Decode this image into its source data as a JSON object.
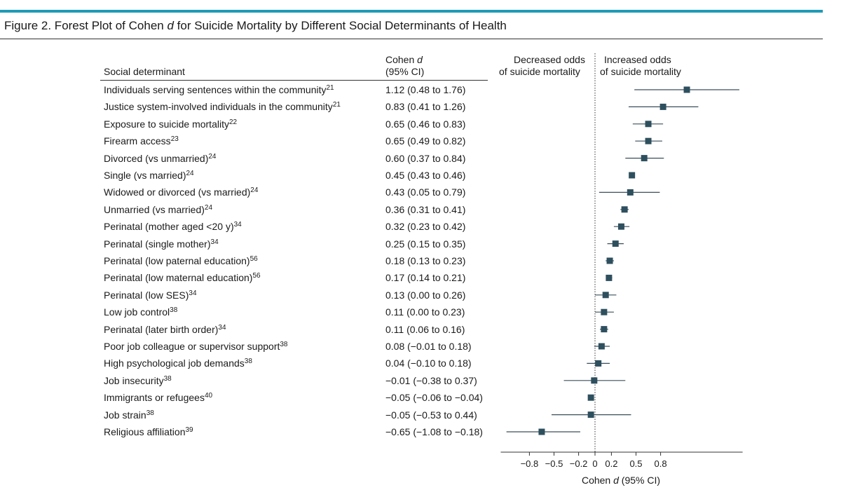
{
  "figure": {
    "title_prefix": "Figure 2. Forest Plot of Cohen ",
    "title_italic": "d",
    "title_suffix": " for Suicide Mortality by Different Social Determinants of Health"
  },
  "headers": {
    "determinant": "Social determinant",
    "ci_line1_prefix": "Cohen ",
    "ci_line1_italic": "d",
    "ci_line2": "(95% CI)",
    "decreased_line1": "Decreased odds",
    "decreased_line2": "of suicide mortality",
    "increased_line1": "Increased odds",
    "increased_line2": "of suicide mortality"
  },
  "colors": {
    "marker": "#2e4f5e",
    "accent": "#1f9bb5",
    "line": "#333333"
  },
  "chart_data": {
    "type": "forest",
    "xlabel_prefix": "Cohen ",
    "xlabel_italic": "d",
    "xlabel_suffix": " (95% CI)",
    "xlim": [
      -1.15,
      1.8
    ],
    "xticks": [
      -0.8,
      -0.5,
      -0.2,
      0,
      0.2,
      0.5,
      0.8
    ],
    "xtick_labels": [
      "−0.8",
      "−0.5",
      "−0.2",
      "0",
      "0.2",
      "0.5",
      "0.8"
    ],
    "reference_line": 0,
    "rows": [
      {
        "label": "Individuals serving sentences within the community",
        "ref": "21",
        "ci_text": "1.12 (0.48 to 1.76)",
        "d": 1.12,
        "lo": 0.48,
        "hi": 1.76
      },
      {
        "label": "Justice system-involved individuals in the community",
        "ref": "21",
        "ci_text": "0.83 (0.41 to 1.26)",
        "d": 0.83,
        "lo": 0.41,
        "hi": 1.26
      },
      {
        "label": "Exposure to suicide mortality",
        "ref": "22",
        "ci_text": "0.65 (0.46 to 0.83)",
        "d": 0.65,
        "lo": 0.46,
        "hi": 0.83
      },
      {
        "label": "Firearm access",
        "ref": "23",
        "ci_text": "0.65 (0.49 to 0.82)",
        "d": 0.65,
        "lo": 0.49,
        "hi": 0.82
      },
      {
        "label": "Divorced (vs unmarried)",
        "ref": "24",
        "ci_text": "0.60 (0.37 to 0.84)",
        "d": 0.6,
        "lo": 0.37,
        "hi": 0.84
      },
      {
        "label": "Single (vs married)",
        "ref": "24",
        "ci_text": "0.45 (0.43 to 0.46)",
        "d": 0.45,
        "lo": 0.43,
        "hi": 0.46
      },
      {
        "label": "Widowed or divorced (vs married)",
        "ref": "24",
        "ci_text": "0.43 (0.05 to 0.79)",
        "d": 0.43,
        "lo": 0.05,
        "hi": 0.79
      },
      {
        "label": "Unmarried (vs married)",
        "ref": "24",
        "ci_text": "0.36 (0.31 to 0.41)",
        "d": 0.36,
        "lo": 0.31,
        "hi": 0.41
      },
      {
        "label": "Perinatal (mother aged <20 y)",
        "ref": "34",
        "ci_text": "0.32 (0.23 to 0.42)",
        "d": 0.32,
        "lo": 0.23,
        "hi": 0.42
      },
      {
        "label": "Perinatal (single mother)",
        "ref": "34",
        "ci_text": "0.25 (0.15 to 0.35)",
        "d": 0.25,
        "lo": 0.15,
        "hi": 0.35
      },
      {
        "label": "Perinatal (low paternal education)",
        "ref": "56",
        "ci_text": "0.18 (0.13 to 0.23)",
        "d": 0.18,
        "lo": 0.13,
        "hi": 0.23
      },
      {
        "label": "Perinatal (low maternal education)",
        "ref": "56",
        "ci_text": "0.17 (0.14 to 0.21)",
        "d": 0.17,
        "lo": 0.14,
        "hi": 0.21
      },
      {
        "label": "Perinatal (low SES)",
        "ref": "34",
        "ci_text": "0.13 (0.00 to 0.26)",
        "d": 0.13,
        "lo": 0.0,
        "hi": 0.26
      },
      {
        "label": "Low job control",
        "ref": "38",
        "ci_text": "0.11 (0.00 to 0.23)",
        "d": 0.11,
        "lo": 0.0,
        "hi": 0.23
      },
      {
        "label": "Perinatal (later birth order)",
        "ref": "34",
        "ci_text": "0.11 (0.06 to 0.16)",
        "d": 0.11,
        "lo": 0.06,
        "hi": 0.16
      },
      {
        "label": "Poor job colleague or supervisor support",
        "ref": "38",
        "ci_text": "0.08 (−0.01 to 0.18)",
        "d": 0.08,
        "lo": -0.01,
        "hi": 0.18
      },
      {
        "label": "High psychological job demands",
        "ref": "38",
        "ci_text": "0.04 (−0.10 to 0.18)",
        "d": 0.04,
        "lo": -0.1,
        "hi": 0.18
      },
      {
        "label": "Job insecurity",
        "ref": "38",
        "ci_text": "−0.01 (−0.38 to 0.37)",
        "d": -0.01,
        "lo": -0.38,
        "hi": 0.37
      },
      {
        "label": "Immigrants or refugees",
        "ref": "40",
        "ci_text": "−0.05 (−0.06 to −0.04)",
        "d": -0.05,
        "lo": -0.06,
        "hi": -0.04
      },
      {
        "label": "Job strain",
        "ref": "38",
        "ci_text": "−0.05 (−0.53 to 0.44)",
        "d": -0.05,
        "lo": -0.53,
        "hi": 0.44
      },
      {
        "label": "Religious affiliation",
        "ref": "39",
        "ci_text": "−0.65 (−1.08 to −0.18)",
        "d": -0.65,
        "lo": -1.08,
        "hi": -0.18
      }
    ]
  }
}
